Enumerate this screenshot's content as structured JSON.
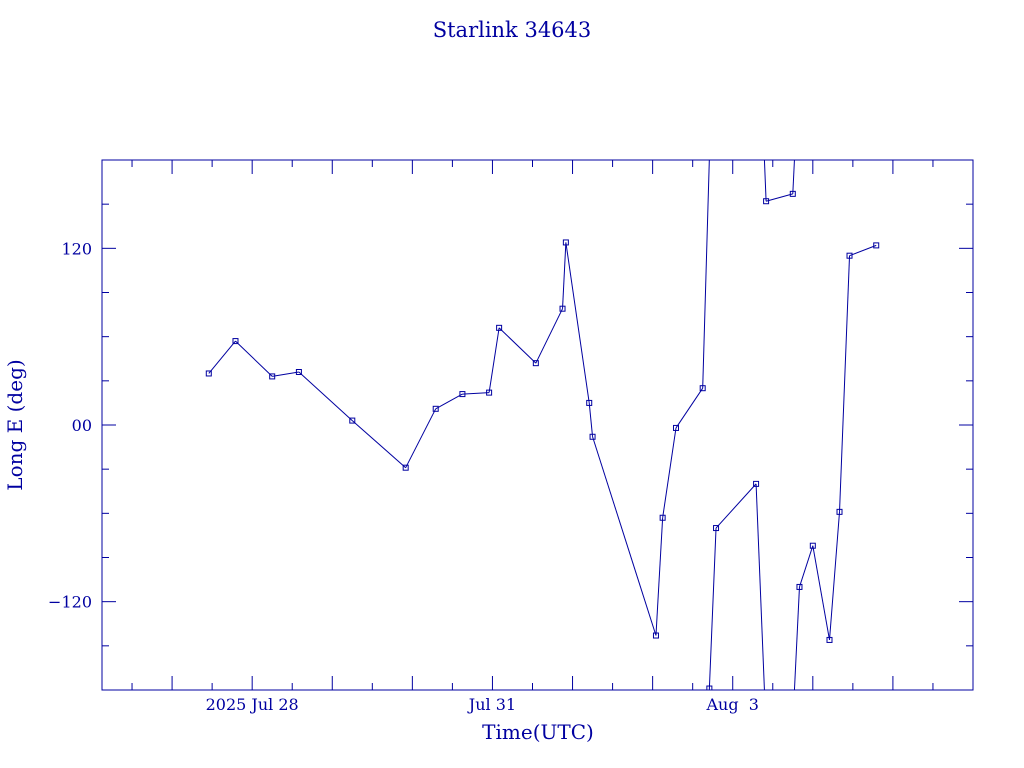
{
  "chart_data": {
    "type": "line",
    "title": "Starlink 34643",
    "xlabel": "Time(UTC)",
    "ylabel": "Long E (deg)",
    "x_unit": "days",
    "xlim": [
      "2025-07-26T03:00",
      "2025-08-06T00:00"
    ],
    "ylim": [
      -180,
      180
    ],
    "x_tick_labels": [
      {
        "t": "2025-07-28T00:00",
        "label": "2025 Jul 28"
      },
      {
        "t": "2025-07-31T00:00",
        "label": "Jul 31"
      },
      {
        "t": "2025-08-03T00:00",
        "label": "Aug  3"
      }
    ],
    "y_ticks": [
      {
        "v": 120,
        "label": "120"
      },
      {
        "v": 0,
        "label": "00"
      },
      {
        "v": -120,
        "label": "−120"
      }
    ],
    "grid": false,
    "wrap_at": 180,
    "color": "#0000a0",
    "series": [
      {
        "points": [
          [
            "2025-07-27T11:00",
            35
          ],
          [
            "2025-07-27T19:00",
            57
          ],
          [
            "2025-07-28T06:00",
            33
          ],
          [
            "2025-07-28T14:00",
            36
          ],
          [
            "2025-07-29T06:00",
            3
          ],
          [
            "2025-07-29T22:00",
            -29
          ],
          [
            "2025-07-30T07:00",
            11
          ],
          [
            "2025-07-30T15:00",
            21
          ],
          [
            "2025-07-30T23:00",
            22
          ],
          [
            "2025-07-31T02:00",
            66
          ],
          [
            "2025-07-31T13:00",
            42
          ],
          [
            "2025-07-31T21:00",
            79
          ],
          [
            "2025-07-31T22:00",
            124
          ],
          [
            "2025-08-01T05:00",
            15
          ],
          [
            "2025-08-01T06:00",
            -8
          ],
          [
            "2025-08-02T01:00",
            -143
          ],
          [
            "2025-08-02T03:00",
            -63
          ],
          [
            "2025-08-02T07:00",
            -2
          ],
          [
            "2025-08-02T15:00",
            25
          ],
          [
            "2025-08-02T17:00",
            -179
          ],
          [
            "2025-08-02T19:00",
            -70
          ],
          [
            "2025-08-03T07:00",
            -40
          ],
          [
            "2025-08-03T10:00",
            152
          ],
          [
            "2025-08-03T18:00",
            157
          ],
          [
            "2025-08-03T20:00",
            -110
          ],
          [
            "2025-08-04T00:00",
            -82
          ],
          [
            "2025-08-04T05:00",
            -146
          ],
          [
            "2025-08-04T08:00",
            -59
          ],
          [
            "2025-08-04T11:00",
            115
          ],
          [
            "2025-08-04T19:00",
            122
          ]
        ]
      }
    ]
  }
}
